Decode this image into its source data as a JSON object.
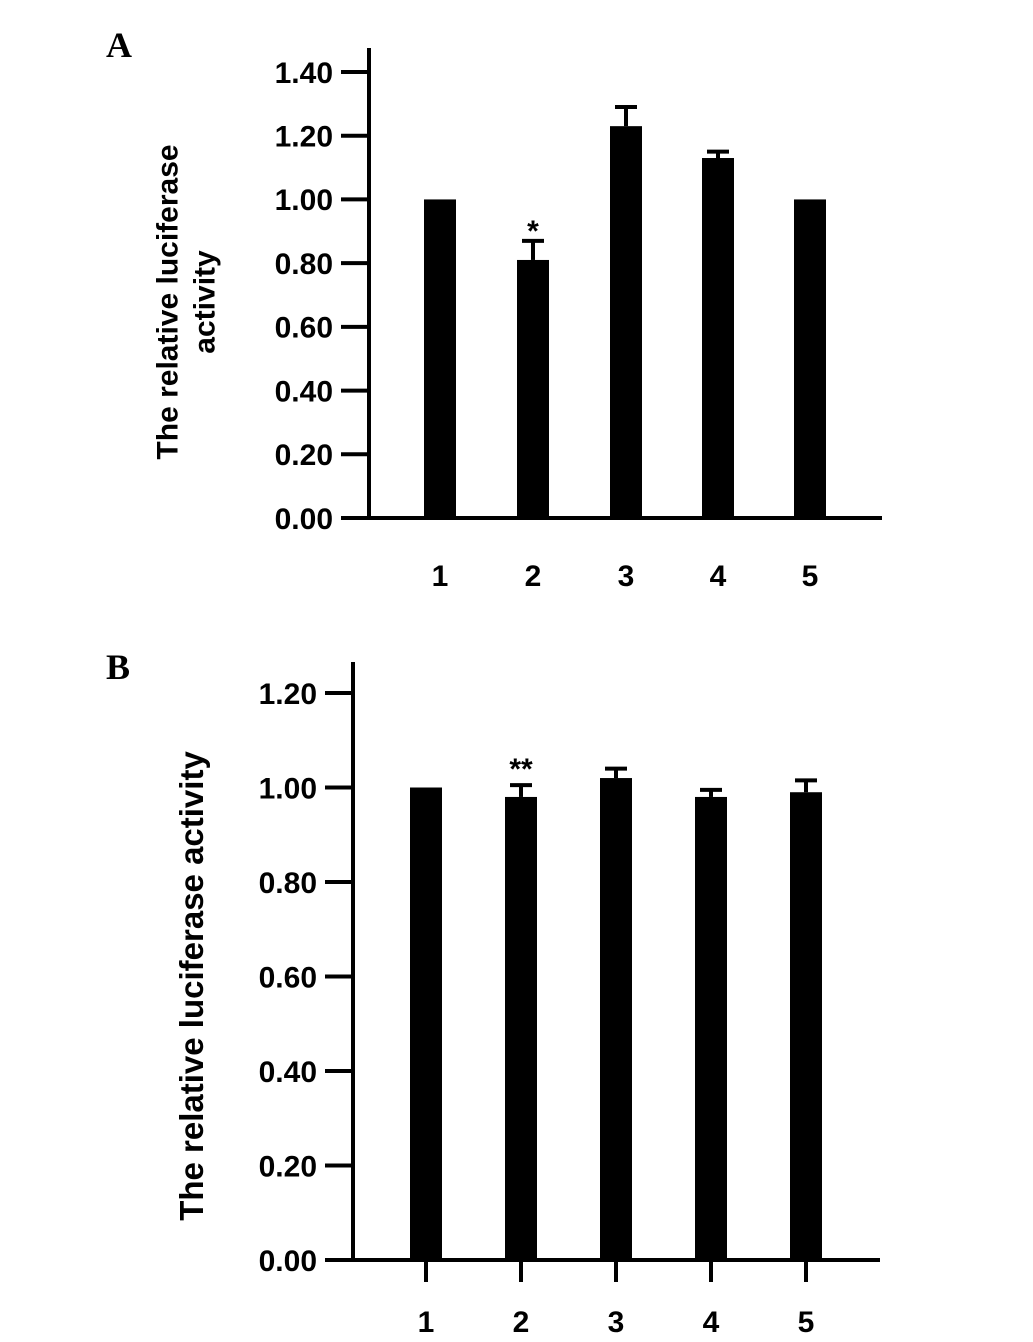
{
  "chart_data": [
    {
      "panel": "A",
      "type": "bar",
      "categories": [
        "1",
        "2",
        "3",
        "4",
        "5"
      ],
      "values": [
        1.0,
        0.81,
        1.23,
        1.13,
        1.0
      ],
      "errors": [
        0.0,
        0.06,
        0.06,
        0.02,
        0.0
      ],
      "annotations": [
        "",
        "*",
        "",
        "",
        ""
      ],
      "ylabel": "The relative luciferase\nactivity",
      "ylim": [
        0,
        1.4
      ],
      "yticks": [
        "0.00",
        "0.20",
        "0.40",
        "0.60",
        "0.80",
        "1.00",
        "1.20",
        "1.40"
      ],
      "grid": false,
      "bar_color": "#000000"
    },
    {
      "panel": "B",
      "type": "bar",
      "categories": [
        "1",
        "2",
        "3",
        "4",
        "5"
      ],
      "values": [
        1.0,
        0.98,
        1.02,
        0.98,
        0.99
      ],
      "errors": [
        0.0,
        0.025,
        0.02,
        0.015,
        0.025
      ],
      "annotations": [
        "",
        "**",
        "",
        "",
        ""
      ],
      "ylabel": "The relative luciferase activity",
      "ylim": [
        0,
        1.2
      ],
      "yticks": [
        "0.00",
        "0.20",
        "0.40",
        "0.60",
        "0.80",
        "1.00",
        "1.20"
      ],
      "grid": false,
      "bar_color": "#000000"
    }
  ]
}
